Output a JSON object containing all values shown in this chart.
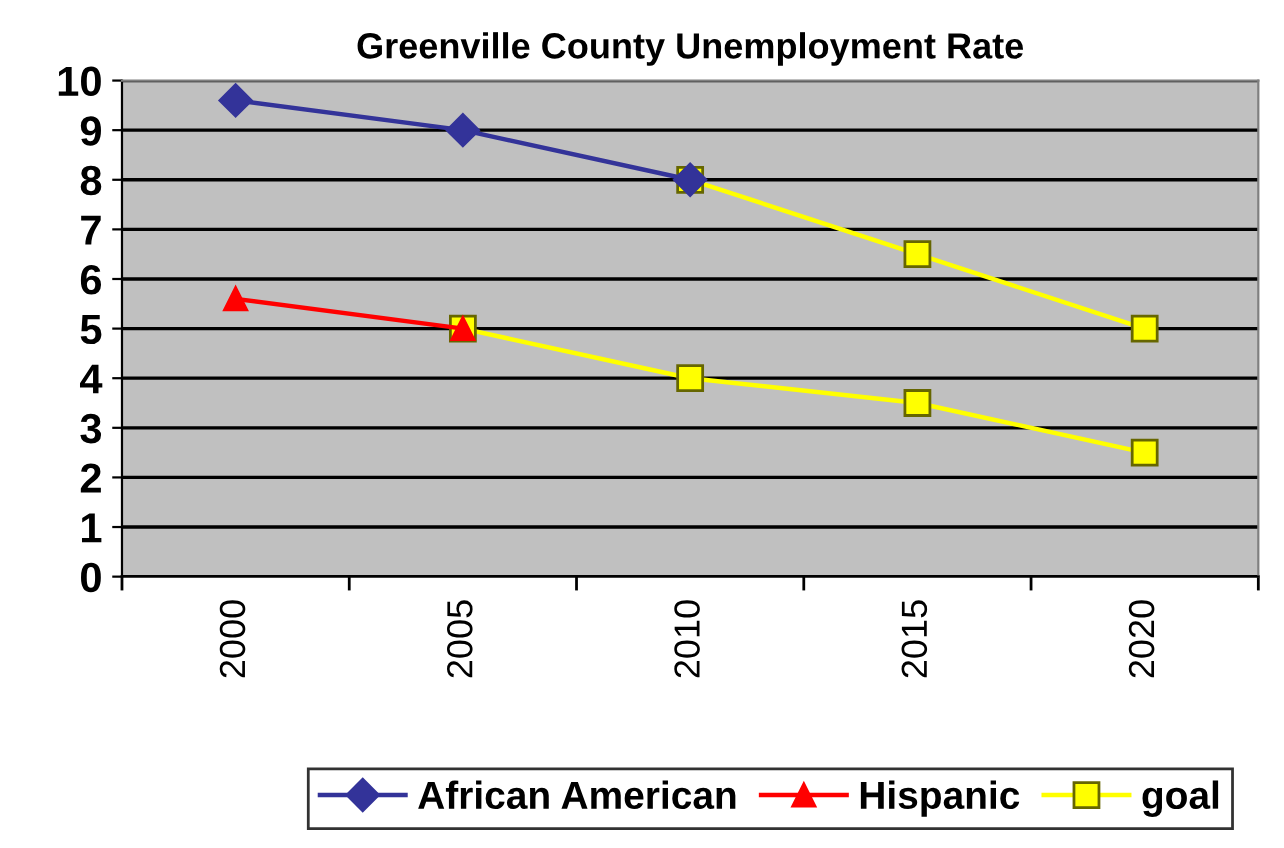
{
  "chart_data": {
    "type": "line",
    "title": "Greenville County Unemployment Rate",
    "categories": [
      "2000",
      "2005",
      "2010",
      "2015",
      "2020"
    ],
    "series": [
      {
        "name": "goal",
        "color": "#ffff00",
        "marker": "square",
        "values": [
          null,
          null,
          8,
          6.5,
          5
        ]
      },
      {
        "color": "#ffff00",
        "marker": "square",
        "values": [
          null,
          5,
          4,
          3.5,
          2.5
        ]
      },
      {
        "name": "African American",
        "color": "#333399",
        "marker": "diamond",
        "values": [
          9.6,
          9,
          8,
          null,
          null
        ]
      },
      {
        "name": "Hispanic",
        "color": "#ff0000",
        "marker": "triangle",
        "values": [
          5.6,
          5,
          null,
          null,
          null
        ]
      }
    ],
    "ylim": [
      0,
      10
    ],
    "yticks": [
      0,
      1,
      2,
      3,
      4,
      5,
      6,
      7,
      8,
      9,
      10
    ],
    "grid": "y",
    "legend": "bottom"
  }
}
